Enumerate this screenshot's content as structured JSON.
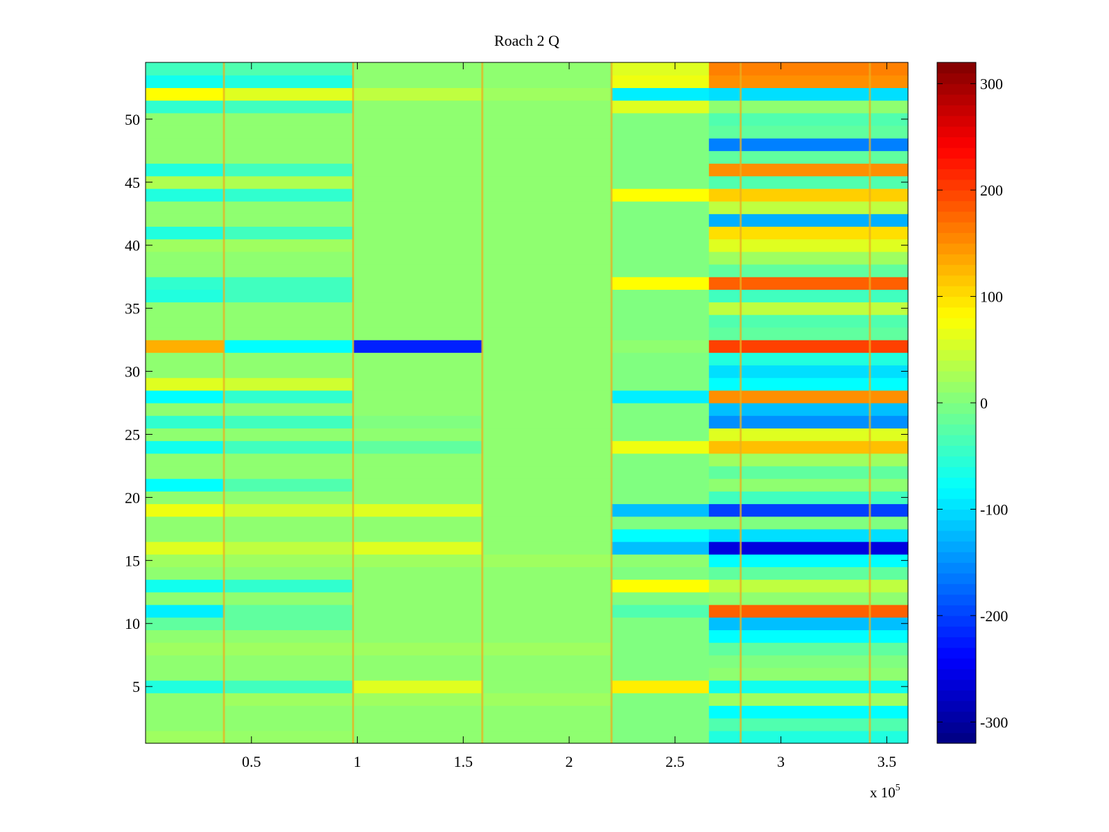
{
  "chart_data": {
    "type": "heatmap",
    "title": "Roach 2 Q",
    "xlabel": "",
    "ylabel": "",
    "colormap": "jet",
    "xlim": [
      0,
      360000
    ],
    "ylim": [
      0.5,
      54.5
    ],
    "x_ticks": [
      50000,
      100000,
      150000,
      200000,
      250000,
      300000,
      350000
    ],
    "x_tick_labels": [
      "0.5",
      "1",
      "1.5",
      "2",
      "2.5",
      "3",
      "3.5"
    ],
    "x_exponent_label": "x 10",
    "x_exponent_power": "5",
    "y_ticks": [
      5,
      10,
      15,
      20,
      25,
      30,
      35,
      40,
      45,
      50
    ],
    "y_tick_labels": [
      "5",
      "10",
      "15",
      "20",
      "25",
      "30",
      "35",
      "40",
      "45",
      "50"
    ],
    "colorbar": {
      "clim": [
        -320,
        320
      ],
      "ticks": [
        -300,
        -200,
        -100,
        0,
        100,
        200,
        300
      ],
      "tick_labels": [
        "-300",
        "-200",
        "-100",
        "0",
        "100",
        "200",
        "300"
      ]
    },
    "rows": 54,
    "segment_bounds": [
      0,
      37000,
      98000,
      159000,
      220000,
      266000,
      360000
    ],
    "segment_values_by_row": {
      "1": [
        20,
        15,
        10,
        10,
        0,
        -60
      ],
      "2": [
        10,
        10,
        10,
        10,
        0,
        -30
      ],
      "3": [
        10,
        10,
        10,
        10,
        0,
        -80
      ],
      "4": [
        10,
        20,
        20,
        20,
        0,
        20
      ],
      "5": [
        -60,
        -40,
        60,
        10,
        90,
        -70
      ],
      "6": [
        10,
        10,
        10,
        10,
        0,
        10
      ],
      "7": [
        10,
        10,
        10,
        10,
        0,
        0
      ],
      "8": [
        20,
        20,
        20,
        20,
        0,
        -20
      ],
      "9": [
        10,
        10,
        10,
        10,
        0,
        -80
      ],
      "10": [
        -20,
        -20,
        10,
        10,
        0,
        -120
      ],
      "11": [
        -90,
        -20,
        10,
        10,
        -30,
        180
      ],
      "12": [
        10,
        10,
        10,
        10,
        0,
        10
      ],
      "13": [
        -70,
        -50,
        10,
        10,
        80,
        40
      ],
      "14": [
        10,
        10,
        10,
        10,
        0,
        -20
      ],
      "15": [
        20,
        20,
        20,
        20,
        10,
        -80
      ],
      "16": [
        60,
        40,
        60,
        10,
        -120,
        -260
      ],
      "17": [
        10,
        10,
        10,
        10,
        -80,
        -100
      ],
      "18": [
        10,
        10,
        10,
        10,
        0,
        0
      ],
      "19": [
        70,
        50,
        60,
        10,
        -120,
        -200
      ],
      "20": [
        10,
        10,
        10,
        10,
        0,
        -40
      ],
      "21": [
        -80,
        -30,
        10,
        10,
        0,
        10
      ],
      "22": [
        10,
        10,
        10,
        10,
        0,
        -20
      ],
      "23": [
        10,
        10,
        10,
        10,
        0,
        20
      ],
      "24": [
        -70,
        -40,
        -20,
        10,
        70,
        120
      ],
      "25": [
        10,
        10,
        10,
        10,
        0,
        60
      ],
      "26": [
        -50,
        -40,
        0,
        10,
        0,
        -150
      ],
      "27": [
        10,
        10,
        10,
        10,
        0,
        -120
      ],
      "28": [
        -80,
        -50,
        10,
        10,
        -90,
        150
      ],
      "29": [
        60,
        50,
        10,
        10,
        0,
        -80
      ],
      "30": [
        10,
        10,
        10,
        10,
        0,
        -100
      ],
      "31": [
        10,
        10,
        10,
        10,
        0,
        -60
      ],
      "32": [
        130,
        -80,
        -220,
        10,
        10,
        200
      ],
      "33": [
        10,
        10,
        10,
        10,
        0,
        -20
      ],
      "34": [
        10,
        10,
        10,
        10,
        0,
        -30
      ],
      "35": [
        10,
        10,
        10,
        10,
        0,
        40
      ],
      "36": [
        -60,
        -40,
        10,
        10,
        0,
        -40
      ],
      "37": [
        -50,
        -40,
        10,
        10,
        80,
        180
      ],
      "38": [
        10,
        10,
        10,
        10,
        0,
        -20
      ],
      "39": [
        10,
        10,
        10,
        10,
        0,
        20
      ],
      "40": [
        20,
        20,
        10,
        10,
        0,
        60
      ],
      "41": [
        -60,
        -40,
        10,
        10,
        0,
        100
      ],
      "42": [
        10,
        10,
        10,
        10,
        0,
        -130
      ],
      "43": [
        10,
        10,
        10,
        10,
        0,
        40
      ],
      "44": [
        -60,
        -50,
        10,
        10,
        80,
        110
      ],
      "45": [
        30,
        30,
        10,
        10,
        0,
        -30
      ],
      "46": [
        -60,
        -40,
        10,
        10,
        0,
        150
      ],
      "47": [
        10,
        10,
        10,
        10,
        0,
        -20
      ],
      "48": [
        10,
        10,
        10,
        10,
        0,
        -160
      ],
      "49": [
        10,
        10,
        10,
        10,
        0,
        -20
      ],
      "50": [
        10,
        10,
        10,
        10,
        0,
        -30
      ],
      "51": [
        -50,
        -40,
        10,
        10,
        60,
        10
      ],
      "52": [
        80,
        60,
        40,
        20,
        -90,
        -100
      ],
      "53": [
        -70,
        -60,
        10,
        10,
        70,
        150
      ],
      "54": [
        -40,
        -30,
        10,
        10,
        60,
        160
      ]
    },
    "vertical_transient_lines_x": [
      37000,
      98000,
      159000,
      220000,
      281000,
      342000
    ]
  }
}
